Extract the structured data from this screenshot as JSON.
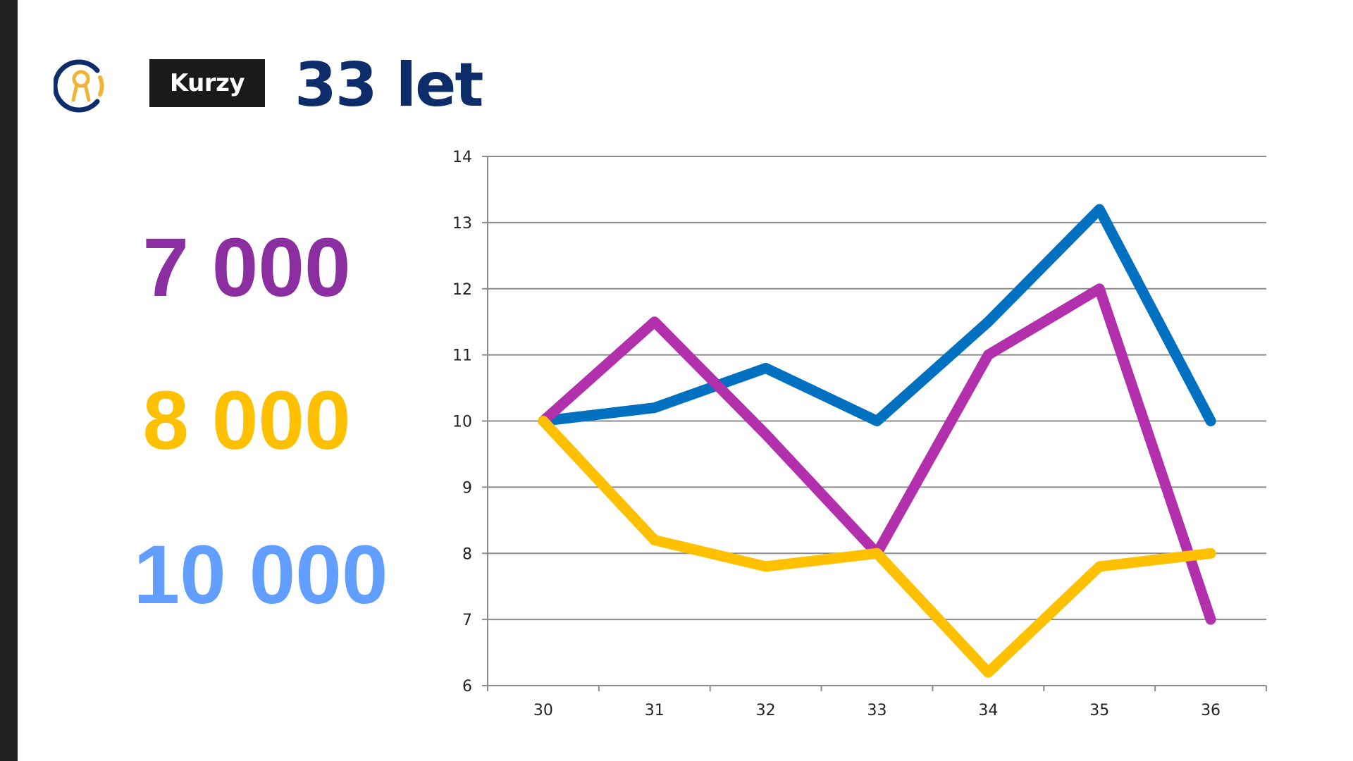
{
  "header": {
    "brand_label": "Kurzy",
    "title": "33 let"
  },
  "logo": {
    "icon": "keyhole-person-logo",
    "ring_color": "#0c2c6a",
    "accent_color": "#f2b233"
  },
  "stats": [
    {
      "value": "7 000",
      "color": "#8b2fa0"
    },
    {
      "value": "8 000",
      "color": "#ffc000"
    },
    {
      "value": "10 000",
      "color": "#619eff"
    }
  ],
  "chart_data": {
    "type": "line",
    "x": [
      30,
      31,
      32,
      33,
      34,
      35,
      36
    ],
    "x_tick_labels": [
      "30",
      "31",
      "32",
      "33",
      "34",
      "35",
      "36"
    ],
    "ylim": [
      6,
      14
    ],
    "y_ticks": [
      6,
      7,
      8,
      9,
      10,
      11,
      12,
      13,
      14
    ],
    "grid": true,
    "legend": "none",
    "series": [
      {
        "color": "#0070c0",
        "values": [
          10,
          10.2,
          10.8,
          10,
          11.5,
          13.2,
          10
        ]
      },
      {
        "color": "#b330ac",
        "values": [
          10,
          11.5,
          9.8,
          8,
          11,
          12,
          7
        ]
      },
      {
        "color": "#ffc000",
        "values": [
          10,
          8.2,
          7.8,
          8,
          6.2,
          7.8,
          8
        ]
      }
    ]
  }
}
